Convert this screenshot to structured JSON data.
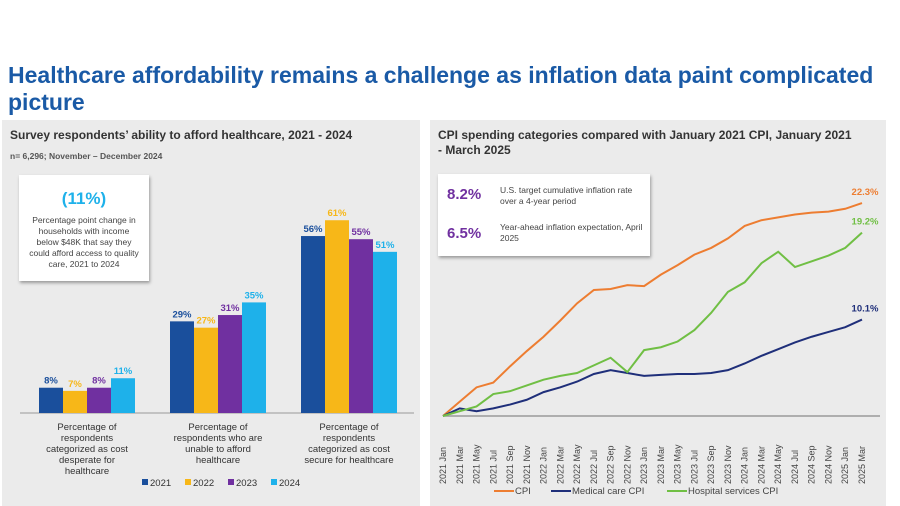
{
  "title": "Healthcare affordability remains a challenge as inflation data paint complicated picture",
  "colors": {
    "y2021": "#1a4f9c",
    "y2022": "#f7b718",
    "y2023": "#7030a0",
    "y2024": "#1eb1ea",
    "cpi": "#ed7d31",
    "medical": "#1f2f7a",
    "hospital": "#70bf44"
  },
  "left": {
    "title": "Survey respondents’ ability to afford healthcare, 2021 - 2024",
    "subtitle": "n= 6,296; November – December 2024",
    "callout": {
      "value": "(11%)",
      "text": "Percentage point change in households with income below $48K that say they could afford access to quality care, 2021 to 2024"
    }
  },
  "right": {
    "title": "CPI spending categories compared with January 2021 CPI, January 2021 - March 2025",
    "callouts": [
      {
        "value": "8.2%",
        "text": "U.S. target cumulative inflation rate over a 4-year period"
      },
      {
        "value": "6.5%",
        "text": "Year-ahead inflation expectation, April 2025"
      }
    ]
  },
  "chart_data": [
    {
      "type": "bar",
      "categories": [
        "Percentage of respondents categorized as cost desperate for healthcare",
        "Percentage of respondents who are unable to afford healthcare",
        "Percentage of respondents categorized as cost secure for healthcare"
      ],
      "series": [
        {
          "name": "2021",
          "values": [
            8,
            29,
            56
          ]
        },
        {
          "name": "2022",
          "values": [
            7,
            27,
            61
          ]
        },
        {
          "name": "2023",
          "values": [
            8,
            31,
            55
          ]
        },
        {
          "name": "2024",
          "values": [
            11,
            35,
            51
          ]
        }
      ],
      "ylim": [
        0,
        65
      ],
      "legend": "bottom",
      "unit": "%"
    },
    {
      "type": "line",
      "x": [
        "2021 Jan",
        "2021 Mar",
        "2021 May",
        "2021 Jul",
        "2021 Sep",
        "2021 Nov",
        "2022 Jan",
        "2022 Mar",
        "2022 May",
        "2022 Jul",
        "2022 Sep",
        "2022 Nov",
        "2023 Jan",
        "2023 Mar",
        "2023 May",
        "2023 Jul",
        "2023 Sep",
        "2023 Nov",
        "2024 Jan",
        "2024 Mar",
        "2024 May",
        "2024 Jul",
        "2024 Sep",
        "2024 Nov",
        "2025 Jan",
        "2025 Mar"
      ],
      "series": [
        {
          "name": "CPI",
          "values": [
            0,
            1.5,
            3.0,
            3.5,
            5.2,
            6.8,
            8.3,
            10.0,
            11.8,
            13.2,
            13.3,
            13.7,
            13.6,
            14.8,
            15.8,
            16.9,
            17.6,
            18.6,
            19.9,
            20.5,
            20.8,
            21.1,
            21.3,
            21.4,
            21.7,
            22.3
          ],
          "end_label": "22.3%"
        },
        {
          "name": "Medical care CPI",
          "values": [
            0,
            0.8,
            0.5,
            0.8,
            1.2,
            1.7,
            2.5,
            3.0,
            3.6,
            4.4,
            4.8,
            4.5,
            4.2,
            4.3,
            4.4,
            4.4,
            4.5,
            4.8,
            5.5,
            6.3,
            7.0,
            7.7,
            8.3,
            8.8,
            9.3,
            10.1
          ],
          "end_label": "10.1%"
        },
        {
          "name": "Hospital services CPI",
          "values": [
            0,
            0.5,
            1.0,
            2.3,
            2.6,
            3.2,
            3.8,
            4.2,
            4.5,
            5.3,
            6.1,
            4.6,
            6.9,
            7.2,
            7.8,
            9.0,
            10.8,
            13.0,
            14.0,
            16.0,
            17.2,
            15.6,
            16.2,
            16.8,
            17.6,
            19.2
          ],
          "end_label": "19.2%"
        }
      ],
      "ylim": [
        0,
        23
      ],
      "legend": "bottom",
      "grid": false
    }
  ]
}
